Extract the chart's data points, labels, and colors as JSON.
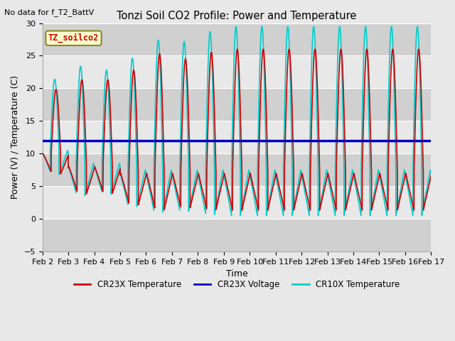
{
  "title": "Tonzi Soil CO2 Profile: Power and Temperature",
  "subtitle": "No data for f_T2_BattV",
  "xlabel": "Time",
  "ylabel": "Power (V) / Temperature (C)",
  "ylim": [
    -5,
    30
  ],
  "xlim": [
    0,
    15
  ],
  "yticks": [
    -5,
    0,
    5,
    10,
    15,
    20,
    25,
    30
  ],
  "xtick_labels": [
    "Feb 2",
    "Feb 3",
    "Feb 4",
    "Feb 5",
    "Feb 6",
    "Feb 7",
    "Feb 8",
    "Feb 9",
    "Feb 10",
    "Feb 11",
    "Feb 12",
    "Feb 13",
    "Feb 14",
    "Feb 15",
    "Feb 16",
    "Feb 17"
  ],
  "legend_label_box": "TZ_soilco2",
  "cr23x_color": "#cc0000",
  "cr10x_color": "#00cccc",
  "voltage_color": "#0000bb",
  "voltage_value": 12.0,
  "fig_bg_color": "#e8e8e8",
  "band_light": "#e8e8e8",
  "band_dark": "#d0d0d0",
  "grid_line_color": "#ffffff",
  "legend_entries": [
    "CR23X Temperature",
    "CR23X Voltage",
    "CR10X Temperature"
  ]
}
